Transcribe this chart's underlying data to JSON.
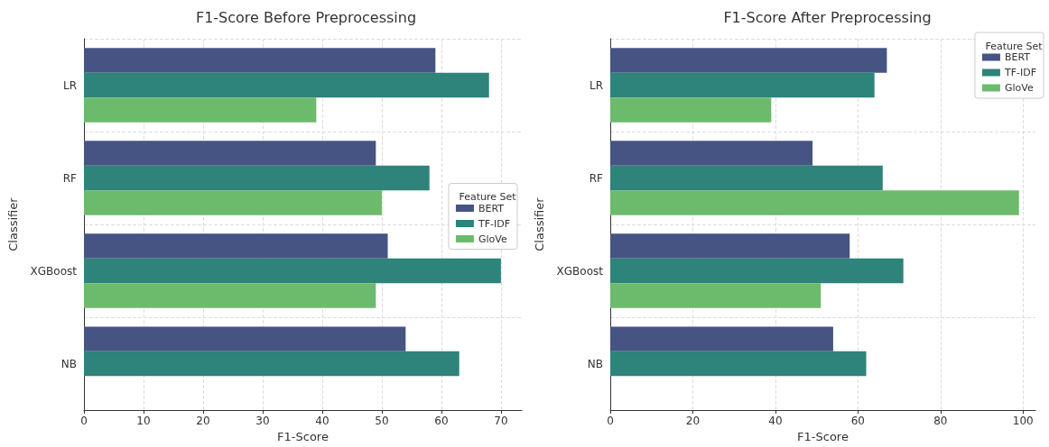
{
  "chart_data": [
    {
      "type": "bar",
      "orientation": "horizontal",
      "title": "F1-Score Before Preprocessing",
      "xlabel": "F1-Score",
      "ylabel": "Classifier",
      "legend_title": "Feature Set",
      "categories": [
        "LR",
        "RF",
        "XGBoost",
        "NB"
      ],
      "series": [
        {
          "name": "BERT",
          "color": "#465483",
          "values": [
            59,
            49,
            51,
            54
          ]
        },
        {
          "name": "TF-IDF",
          "color": "#2e837a",
          "values": [
            68,
            58,
            70,
            63
          ]
        },
        {
          "name": "GloVe",
          "color": "#6cbb6c",
          "values": [
            39,
            50,
            49,
            0
          ]
        }
      ],
      "xlim": [
        0,
        73.5
      ],
      "xticks": [
        0,
        10,
        20,
        30,
        40,
        50,
        60,
        70
      ],
      "grid": true,
      "legend": "right"
    },
    {
      "type": "bar",
      "orientation": "horizontal",
      "title": "F1-Score After Preprocessing",
      "xlabel": "F1-Score",
      "ylabel": "Classifier",
      "legend_title": "Feature Set",
      "categories": [
        "LR",
        "RF",
        "XGBoost",
        "NB"
      ],
      "series": [
        {
          "name": "BERT",
          "color": "#465483",
          "values": [
            67,
            49,
            58,
            54
          ]
        },
        {
          "name": "TF-IDF",
          "color": "#2e837a",
          "values": [
            64,
            66,
            71,
            62
          ]
        },
        {
          "name": "GloVe",
          "color": "#6cbb6c",
          "values": [
            39,
            99,
            51,
            0
          ]
        }
      ],
      "xlim": [
        0,
        103
      ],
      "xticks": [
        0,
        20,
        40,
        60,
        80,
        100
      ],
      "grid": true,
      "legend": "top right"
    }
  ]
}
